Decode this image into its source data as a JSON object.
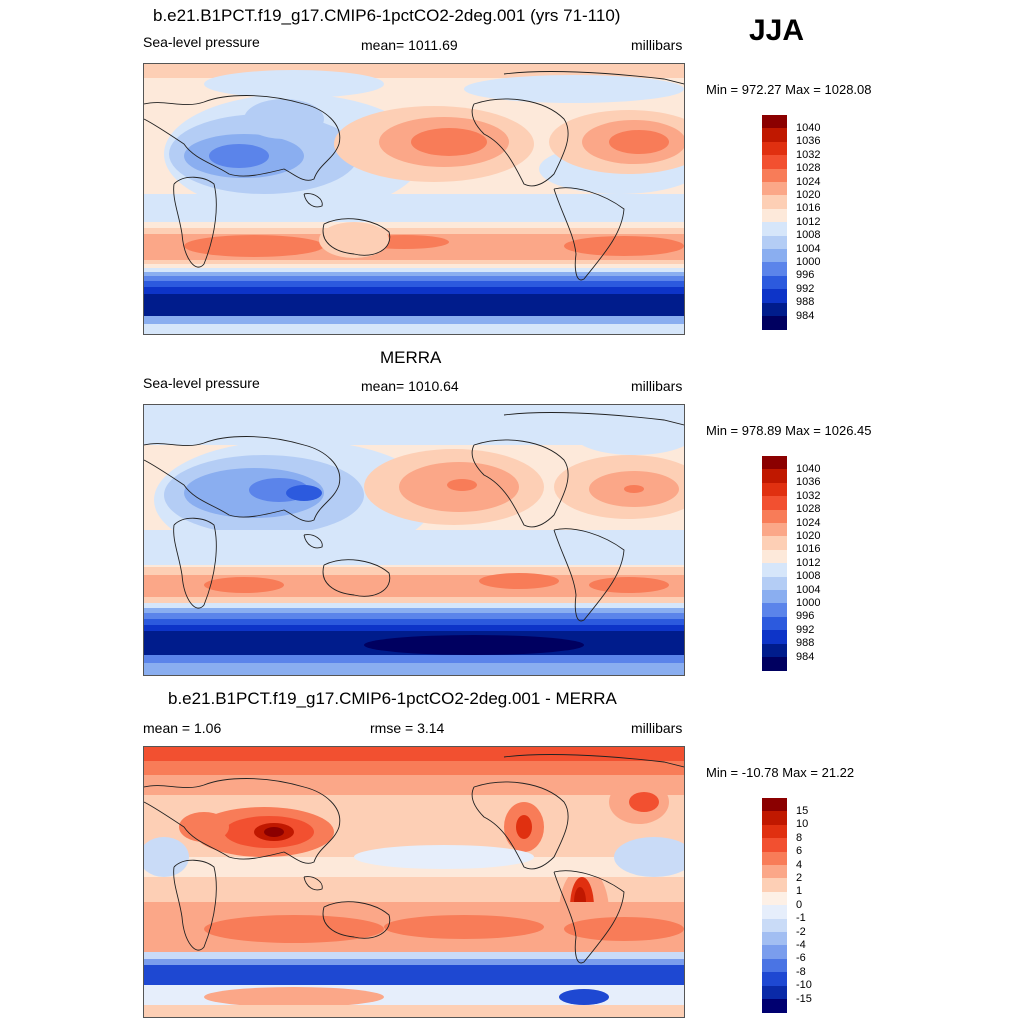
{
  "season": "JJA",
  "panels": [
    {
      "title": "b.e21.B1PCT.f19_g17.CMIP6-1pctCO2-2deg.001 (yrs 71-110)",
      "left_label": "Sea-level pressure",
      "center_label": "mean= 1011.69",
      "right_label": "millibars",
      "minmax": "Min = 972.27 Max = 1028.08",
      "colorbar_labels": [
        "1040",
        "1036",
        "1032",
        "1028",
        "1024",
        "1020",
        "1016",
        "1012",
        "1008",
        "1004",
        "1000",
        "996",
        "992",
        "988",
        "984"
      ],
      "colorbar_colors": [
        "#8b0000",
        "#c01800",
        "#e03010",
        "#f25030",
        "#f87c58",
        "#fba788",
        "#fdcfb5",
        "#fde9da",
        "#d6e6fa",
        "#b4cdf5",
        "#8aaef0",
        "#5b84ea",
        "#2c5ade",
        "#0d34c8",
        "#001c8c",
        "#000060"
      ]
    },
    {
      "title": "MERRA",
      "left_label": "Sea-level pressure",
      "center_label": "mean= 1010.64",
      "right_label": "millibars",
      "minmax": "Min = 978.89 Max = 1026.45",
      "colorbar_labels": [
        "1040",
        "1036",
        "1032",
        "1028",
        "1024",
        "1020",
        "1016",
        "1012",
        "1008",
        "1004",
        "1000",
        "996",
        "992",
        "988",
        "984"
      ],
      "colorbar_colors": [
        "#8b0000",
        "#c01800",
        "#e03010",
        "#f25030",
        "#f87c58",
        "#fba788",
        "#fdcfb5",
        "#fde9da",
        "#d6e6fa",
        "#b4cdf5",
        "#8aaef0",
        "#5b84ea",
        "#2c5ade",
        "#0d34c8",
        "#001c8c",
        "#000060"
      ]
    },
    {
      "title": "b.e21.B1PCT.f19_g17.CMIP6-1pctCO2-2deg.001 - MERRA",
      "left_label": "mean =   1.06",
      "center_label": "rmse =   3.14",
      "right_label": "millibars",
      "minmax": "Min = -10.78 Max =  21.22",
      "colorbar_labels": [
        "15",
        "10",
        "8",
        "6",
        "4",
        "2",
        "1",
        "0",
        "-1",
        "-2",
        "-4",
        "-6",
        "-8",
        "-10",
        "-15"
      ],
      "colorbar_colors": [
        "#8b0000",
        "#c01800",
        "#e03010",
        "#f25030",
        "#f87c58",
        "#fba788",
        "#fdcfb5",
        "#fdf0e6",
        "#e6eefb",
        "#c9dbf7",
        "#a2bef2",
        "#7a9ded",
        "#4a74e4",
        "#1e48d2",
        "#0a2aa8",
        "#000070"
      ]
    }
  ]
}
